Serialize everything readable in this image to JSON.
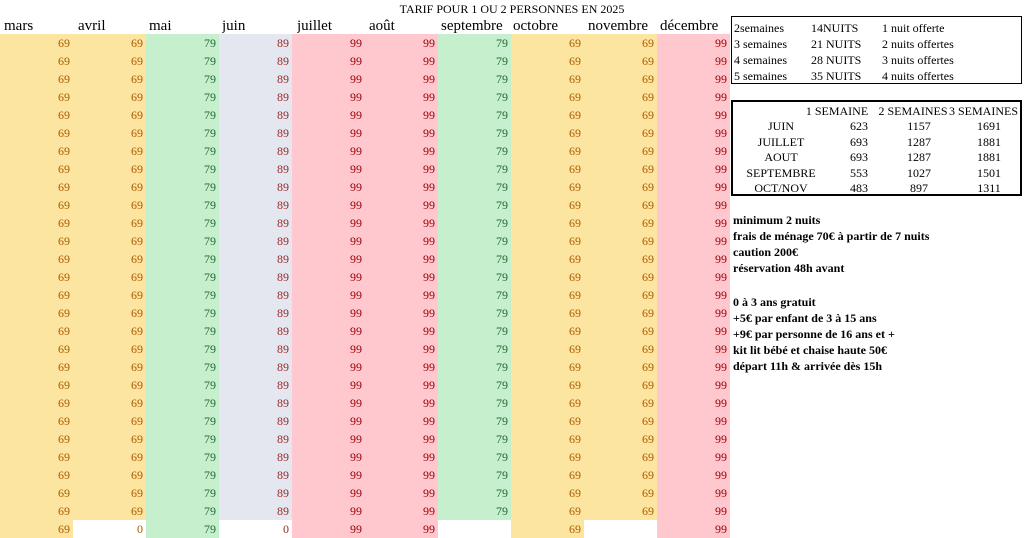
{
  "title": "TARIF POUR 1 OU 2 PERSONNES EN 2025",
  "months": [
    {
      "name": "mars",
      "color": "#fbe5a0",
      "text": "#b05a00",
      "values": [
        "69",
        "69",
        "69",
        "69",
        "69",
        "69",
        "69",
        "69",
        "69",
        "69",
        "69",
        "69",
        "69",
        "69",
        "69",
        "69",
        "69",
        "69",
        "69",
        "69",
        "69",
        "69",
        "69",
        "69",
        "69",
        "69",
        "69",
        "69"
      ]
    },
    {
      "name": "avril",
      "color": "#fbe5a0",
      "text": "#b05a00",
      "values": [
        "69",
        "69",
        "69",
        "69",
        "69",
        "69",
        "69",
        "69",
        "69",
        "69",
        "69",
        "69",
        "69",
        "69",
        "69",
        "69",
        "69",
        "69",
        "69",
        "69",
        "69",
        "69",
        "69",
        "69",
        "69",
        "69",
        "69",
        "0"
      ]
    },
    {
      "name": "mai",
      "color": "#c6efce",
      "text": "#1f6b2f",
      "values": [
        "79",
        "79",
        "79",
        "79",
        "79",
        "79",
        "79",
        "79",
        "79",
        "79",
        "79",
        "79",
        "79",
        "79",
        "79",
        "79",
        "79",
        "79",
        "79",
        "79",
        "79",
        "79",
        "79",
        "79",
        "79",
        "79",
        "79",
        "79"
      ]
    },
    {
      "name": "juin",
      "color": "#e4e7ef",
      "text": "#9c2a2a",
      "values": [
        "89",
        "89",
        "89",
        "89",
        "89",
        "89",
        "89",
        "89",
        "89",
        "89",
        "89",
        "89",
        "89",
        "89",
        "89",
        "89",
        "89",
        "89",
        "89",
        "89",
        "89",
        "89",
        "89",
        "89",
        "89",
        "89",
        "89",
        "0"
      ]
    },
    {
      "name": "juillet",
      "color": "#ffc7ce",
      "text": "#9c0006",
      "values": [
        "99",
        "99",
        "99",
        "99",
        "99",
        "99",
        "99",
        "99",
        "99",
        "99",
        "99",
        "99",
        "99",
        "99",
        "99",
        "99",
        "99",
        "99",
        "99",
        "99",
        "99",
        "99",
        "99",
        "99",
        "99",
        "99",
        "99",
        "99"
      ]
    },
    {
      "name": "août",
      "color": "#ffc7ce",
      "text": "#9c0006",
      "values": [
        "99",
        "99",
        "99",
        "99",
        "99",
        "99",
        "99",
        "99",
        "99",
        "99",
        "99",
        "99",
        "99",
        "99",
        "99",
        "99",
        "99",
        "99",
        "99",
        "99",
        "99",
        "99",
        "99",
        "99",
        "99",
        "99",
        "99",
        "99"
      ]
    },
    {
      "name": "septembre",
      "color": "#c6efce",
      "text": "#1f6b2f",
      "values": [
        "79",
        "79",
        "79",
        "79",
        "79",
        "79",
        "79",
        "79",
        "79",
        "79",
        "79",
        "79",
        "79",
        "79",
        "79",
        "79",
        "79",
        "79",
        "79",
        "79",
        "79",
        "79",
        "79",
        "79",
        "79",
        "79",
        "79",
        ""
      ]
    },
    {
      "name": "octobre",
      "color": "#fbe5a0",
      "text": "#b05a00",
      "values": [
        "69",
        "69",
        "69",
        "69",
        "69",
        "69",
        "69",
        "69",
        "69",
        "69",
        "69",
        "69",
        "69",
        "69",
        "69",
        "69",
        "69",
        "69",
        "69",
        "69",
        "69",
        "69",
        "69",
        "69",
        "69",
        "69",
        "69",
        "69"
      ]
    },
    {
      "name": "novembre",
      "color": "#fbe5a0",
      "text": "#b05a00",
      "values": [
        "69",
        "69",
        "69",
        "69",
        "69",
        "69",
        "69",
        "69",
        "69",
        "69",
        "69",
        "69",
        "69",
        "69",
        "69",
        "69",
        "69",
        "69",
        "69",
        "69",
        "69",
        "69",
        "69",
        "69",
        "69",
        "69",
        "69",
        ""
      ]
    },
    {
      "name": "décembre",
      "color": "#ffc7ce",
      "text": "#9c0006",
      "values": [
        "99",
        "99",
        "99",
        "99",
        "99",
        "99",
        "99",
        "99",
        "99",
        "99",
        "99",
        "99",
        "99",
        "99",
        "99",
        "99",
        "99",
        "99",
        "99",
        "99",
        "99",
        "99",
        "99",
        "99",
        "99",
        "99",
        "99",
        "99"
      ]
    }
  ],
  "offers": [
    {
      "duration": "2semaines",
      "nights": "14NUITS",
      "offer": "1 nuit offerte"
    },
    {
      "duration": "3 semaines",
      "nights": "21 NUITS",
      "offer": "2 nuits offertes"
    },
    {
      "duration": "4 semaines",
      "nights": "28 NUITS",
      "offer": "3 nuits offertes"
    },
    {
      "duration": "5 semaines",
      "nights": "35 NUITS",
      "offer": "4 nuits offertes"
    }
  ],
  "weekly": {
    "headers": [
      "1 SEMAINE",
      "2 SEMAINES",
      "3 SEMAINES"
    ],
    "rows": [
      {
        "month": "JUIN",
        "values": [
          "623",
          "1157",
          "1691"
        ]
      },
      {
        "month": "JUILLET",
        "values": [
          "693",
          "1287",
          "1881"
        ]
      },
      {
        "month": "AOUT",
        "values": [
          "693",
          "1287",
          "1881"
        ]
      },
      {
        "month": "SEPTEMBRE",
        "values": [
          "553",
          "1027",
          "1501"
        ]
      },
      {
        "month": "OCT/NOV",
        "values": [
          "483",
          "897",
          "1311"
        ]
      }
    ]
  },
  "notes_a": [
    "minimum 2 nuits",
    "frais de ménage 70€ à partir de 7 nuits",
    "caution 200€",
    "réservation 48h avant"
  ],
  "notes_b": [
    "0 à 3 ans gratuit",
    "+5€ par enfant de 3 à 15 ans",
    "+9€ par personne de  16 ans et +",
    "kit lit bébé et chaise haute 50€",
    "départ  11h & arrivée dès 15h"
  ]
}
